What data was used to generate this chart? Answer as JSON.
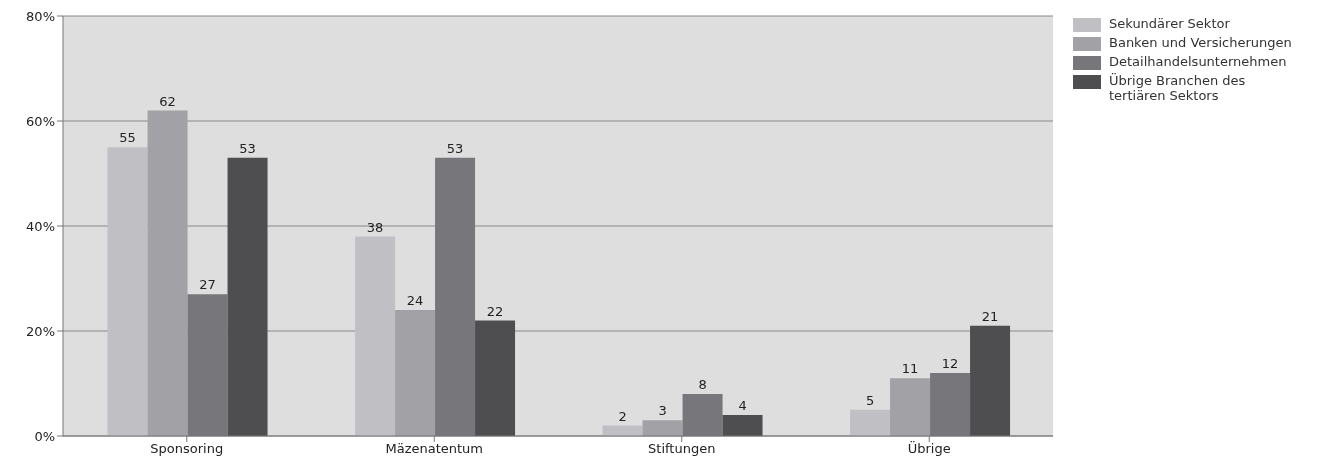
{
  "chart_data": {
    "type": "bar",
    "categories": [
      "Sponsoring",
      "Mäzenatentum",
      "Stiftungen",
      "Übrige"
    ],
    "series": [
      {
        "name": "Sekundärer Sektor",
        "color": "#c0c0c4",
        "values": [
          55,
          38,
          2,
          5
        ]
      },
      {
        "name": "Banken und Versicherungen",
        "color": "#a2a2a6",
        "values": [
          62,
          24,
          3,
          11
        ]
      },
      {
        "name": "Detailhandelsunternehmen",
        "color": "#77777b",
        "values": [
          27,
          53,
          8,
          12
        ]
      },
      {
        "name": "Übrige Branchen des tertiären Sektors",
        "color": "#4e4e51",
        "values": [
          53,
          22,
          4,
          21
        ]
      }
    ],
    "ylim": [
      0,
      80
    ],
    "yticks": [
      {
        "value": 0,
        "label": "0%"
      },
      {
        "value": 20,
        "label": "20%"
      },
      {
        "value": 40,
        "label": "40%"
      },
      {
        "value": 60,
        "label": "60%"
      },
      {
        "value": 80,
        "label": "80%"
      }
    ],
    "grid": "y",
    "legend": "top right",
    "data_labels": true
  }
}
